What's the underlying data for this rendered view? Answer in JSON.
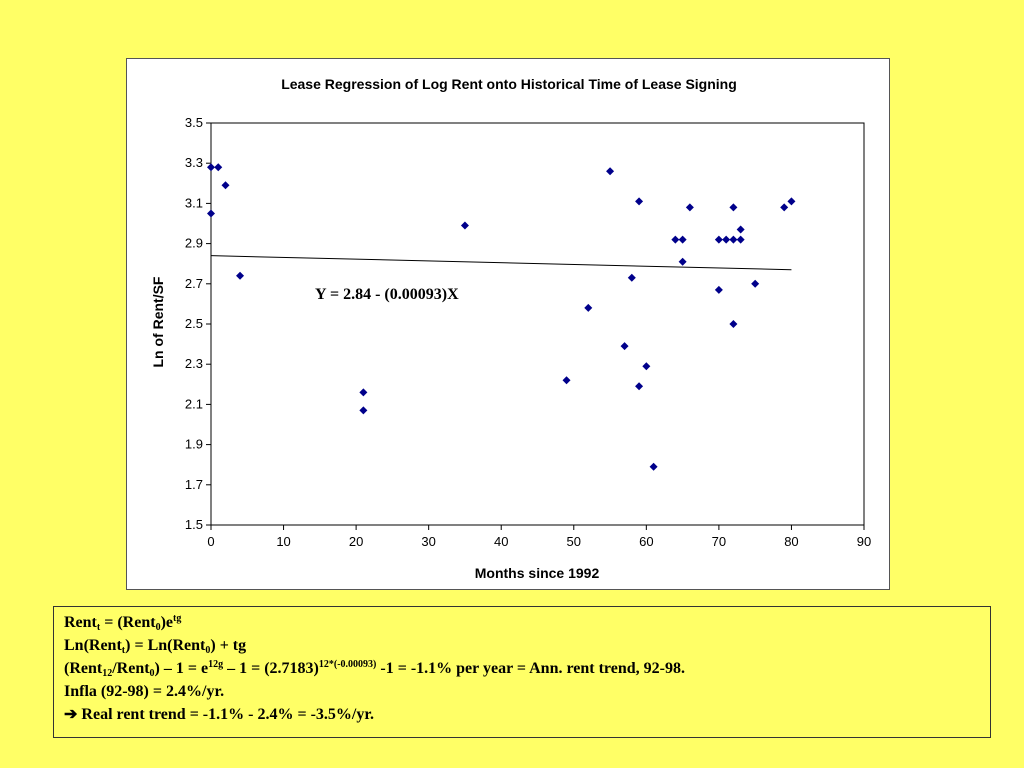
{
  "chart_data": {
    "type": "scatter",
    "title": "Lease Regression of Log Rent onto Historical Time of Lease Signing",
    "xlabel": "Months since 1992",
    "ylabel": "Ln of Rent/SF",
    "xlim": [
      0,
      90
    ],
    "ylim": [
      1.5,
      3.5
    ],
    "xticks": [
      "0",
      "10",
      "20",
      "30",
      "40",
      "50",
      "60",
      "70",
      "80",
      "90"
    ],
    "yticks": [
      "1.5",
      "1.7",
      "1.9",
      "2.1",
      "2.3",
      "2.5",
      "2.7",
      "2.9",
      "3.1",
      "3.3",
      "3.5"
    ],
    "grid": false,
    "marker_color": "#00008b",
    "points": [
      [
        0,
        3.28
      ],
      [
        1,
        3.28
      ],
      [
        2,
        3.19
      ],
      [
        0,
        3.05
      ],
      [
        4,
        2.74
      ],
      [
        21,
        2.16
      ],
      [
        21,
        2.07
      ],
      [
        35,
        2.99
      ],
      [
        49,
        2.22
      ],
      [
        52,
        2.58
      ],
      [
        55,
        3.26
      ],
      [
        57,
        2.39
      ],
      [
        58,
        2.73
      ],
      [
        59,
        3.11
      ],
      [
        59,
        2.19
      ],
      [
        60,
        2.29
      ],
      [
        61,
        1.79
      ],
      [
        64,
        2.92
      ],
      [
        65,
        2.92
      ],
      [
        65,
        2.81
      ],
      [
        66,
        3.08
      ],
      [
        70,
        2.92
      ],
      [
        70,
        2.67
      ],
      [
        71,
        2.92
      ],
      [
        72,
        2.92
      ],
      [
        72,
        3.08
      ],
      [
        72,
        2.5
      ],
      [
        73,
        2.92
      ],
      [
        73,
        2.97
      ],
      [
        75,
        2.7
      ],
      [
        79,
        3.08
      ],
      [
        80,
        3.11
      ]
    ],
    "trendline": {
      "x": [
        0,
        80
      ],
      "y": [
        2.84,
        2.77
      ],
      "color": "#000000"
    },
    "equation_label": "Y = 2.84 - (0.00093)X"
  },
  "notes": {
    "line1": {
      "a": "Rent",
      "a_sub": "t",
      "b": " = (Rent",
      "b_sub": "0",
      "c": ")e",
      "c_sup": "tg"
    },
    "line2": {
      "a": "Ln(Rent",
      "a_sub": "t",
      "b": ") = Ln(Rent",
      "b_sub": "0",
      "c": ") +  tg"
    },
    "line3": {
      "a": "(Rent",
      "a_sub": "12",
      "b": "/Rent",
      "b_sub": "0",
      "c": ") – 1 = e",
      "c_sup": "12g",
      "d": " – 1 = (2.7183)",
      "d_sup": "12*(-0.00093)",
      "e": " -1 = -1.1% per year = Ann. rent trend, 92-98."
    },
    "line4": "Infla (92-98) = 2.4%/yr.",
    "line5": {
      "arrow": "➔",
      "text": " Real rent trend = -1.1% - 2.4% = -3.5%/yr."
    }
  }
}
